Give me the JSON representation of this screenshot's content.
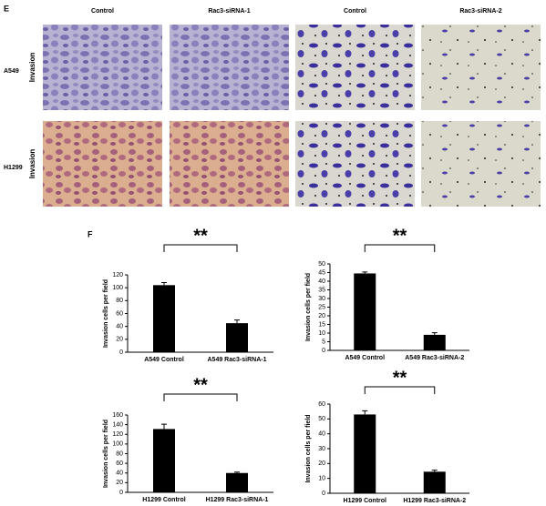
{
  "panel_e": {
    "label": "E",
    "columns": [
      "Control",
      "Rac3-siRNA-1",
      "Control",
      "Rac3-siRNA-2"
    ],
    "rows": [
      {
        "cell_line": "A549",
        "assay": "Invasion"
      },
      {
        "cell_line": "H1299",
        "assay": "Invasion"
      }
    ]
  },
  "panel_f_label": "F",
  "chart_data": [
    {
      "type": "bar",
      "ylabel": "Invasion cells per field",
      "categories": [
        "A549 Control",
        "A549 Rac3-siRNA-1"
      ],
      "values": [
        104,
        45
      ],
      "errors": [
        4,
        5
      ],
      "color": "#000000",
      "ylim": [
        0,
        120
      ],
      "yticks": [
        0,
        20,
        40,
        60,
        80,
        100,
        120
      ],
      "annotation": "**"
    },
    {
      "type": "bar",
      "ylabel": "Invasion cells per field",
      "categories": [
        "A549 Control",
        "A549 Rac3-siRNA-2"
      ],
      "values": [
        44.5,
        9
      ],
      "errors": [
        0.8,
        1.2
      ],
      "color": "#000000",
      "ylim": [
        0,
        50
      ],
      "yticks": [
        0,
        5,
        10,
        15,
        20,
        25,
        30,
        35,
        40,
        45,
        50
      ],
      "annotation": "**"
    },
    {
      "type": "bar",
      "ylabel": "Invasion cells per field",
      "categories": [
        "H1299 Control",
        "H1299 Rac3-siRNA-1"
      ],
      "values": [
        131,
        40
      ],
      "errors": [
        10,
        2
      ],
      "color": "#000000",
      "ylim": [
        0,
        160
      ],
      "yticks": [
        0,
        20,
        40,
        60,
        80,
        100,
        120,
        140,
        160
      ],
      "annotation": "**"
    },
    {
      "type": "bar",
      "ylabel": "Invasion cells per field",
      "categories": [
        "H1299 Control",
        "H1299 Rac3-siRNA-2"
      ],
      "values": [
        53,
        14.5
      ],
      "errors": [
        2.5,
        1
      ],
      "color": "#000000",
      "ylim": [
        0,
        60
      ],
      "yticks": [
        0,
        10,
        20,
        30,
        40,
        50,
        60
      ],
      "annotation": "**"
    }
  ]
}
